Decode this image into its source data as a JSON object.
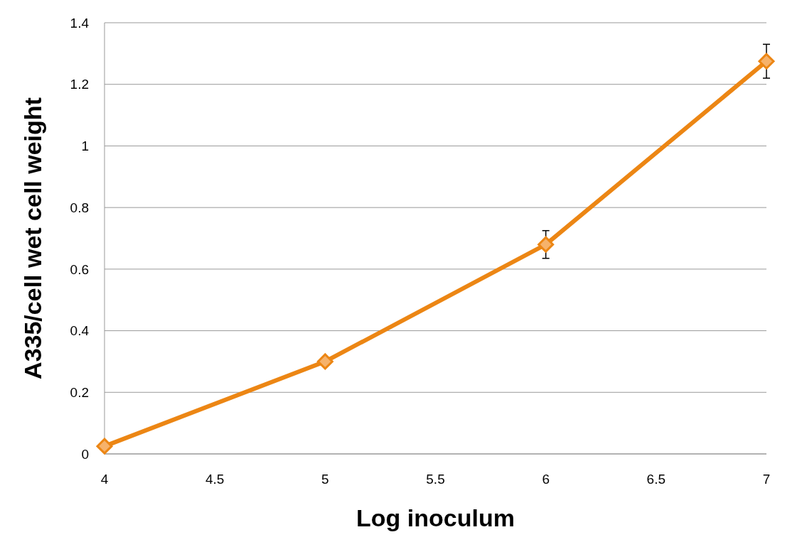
{
  "chart_data": {
    "type": "line",
    "xlabel": "Log inoculum",
    "ylabel": "A335/cell wet cell weight",
    "x": [
      4,
      5,
      6,
      7
    ],
    "series": [
      {
        "color": "#ec8614",
        "values": [
          0.025,
          0.3,
          0.68,
          1.275
        ],
        "errors": [
          null,
          null,
          0.045,
          0.055
        ]
      }
    ],
    "xlim": [
      4,
      7
    ],
    "xticks": [
      4,
      4.5,
      5,
      5.5,
      6,
      6.5,
      7
    ],
    "ylim": [
      0,
      1.4
    ],
    "yticks": [
      0,
      0.2,
      0.4,
      0.6,
      0.8,
      1,
      1.2,
      1.4
    ],
    "grid": "y",
    "marker": "diamond",
    "line_style": "solid"
  }
}
